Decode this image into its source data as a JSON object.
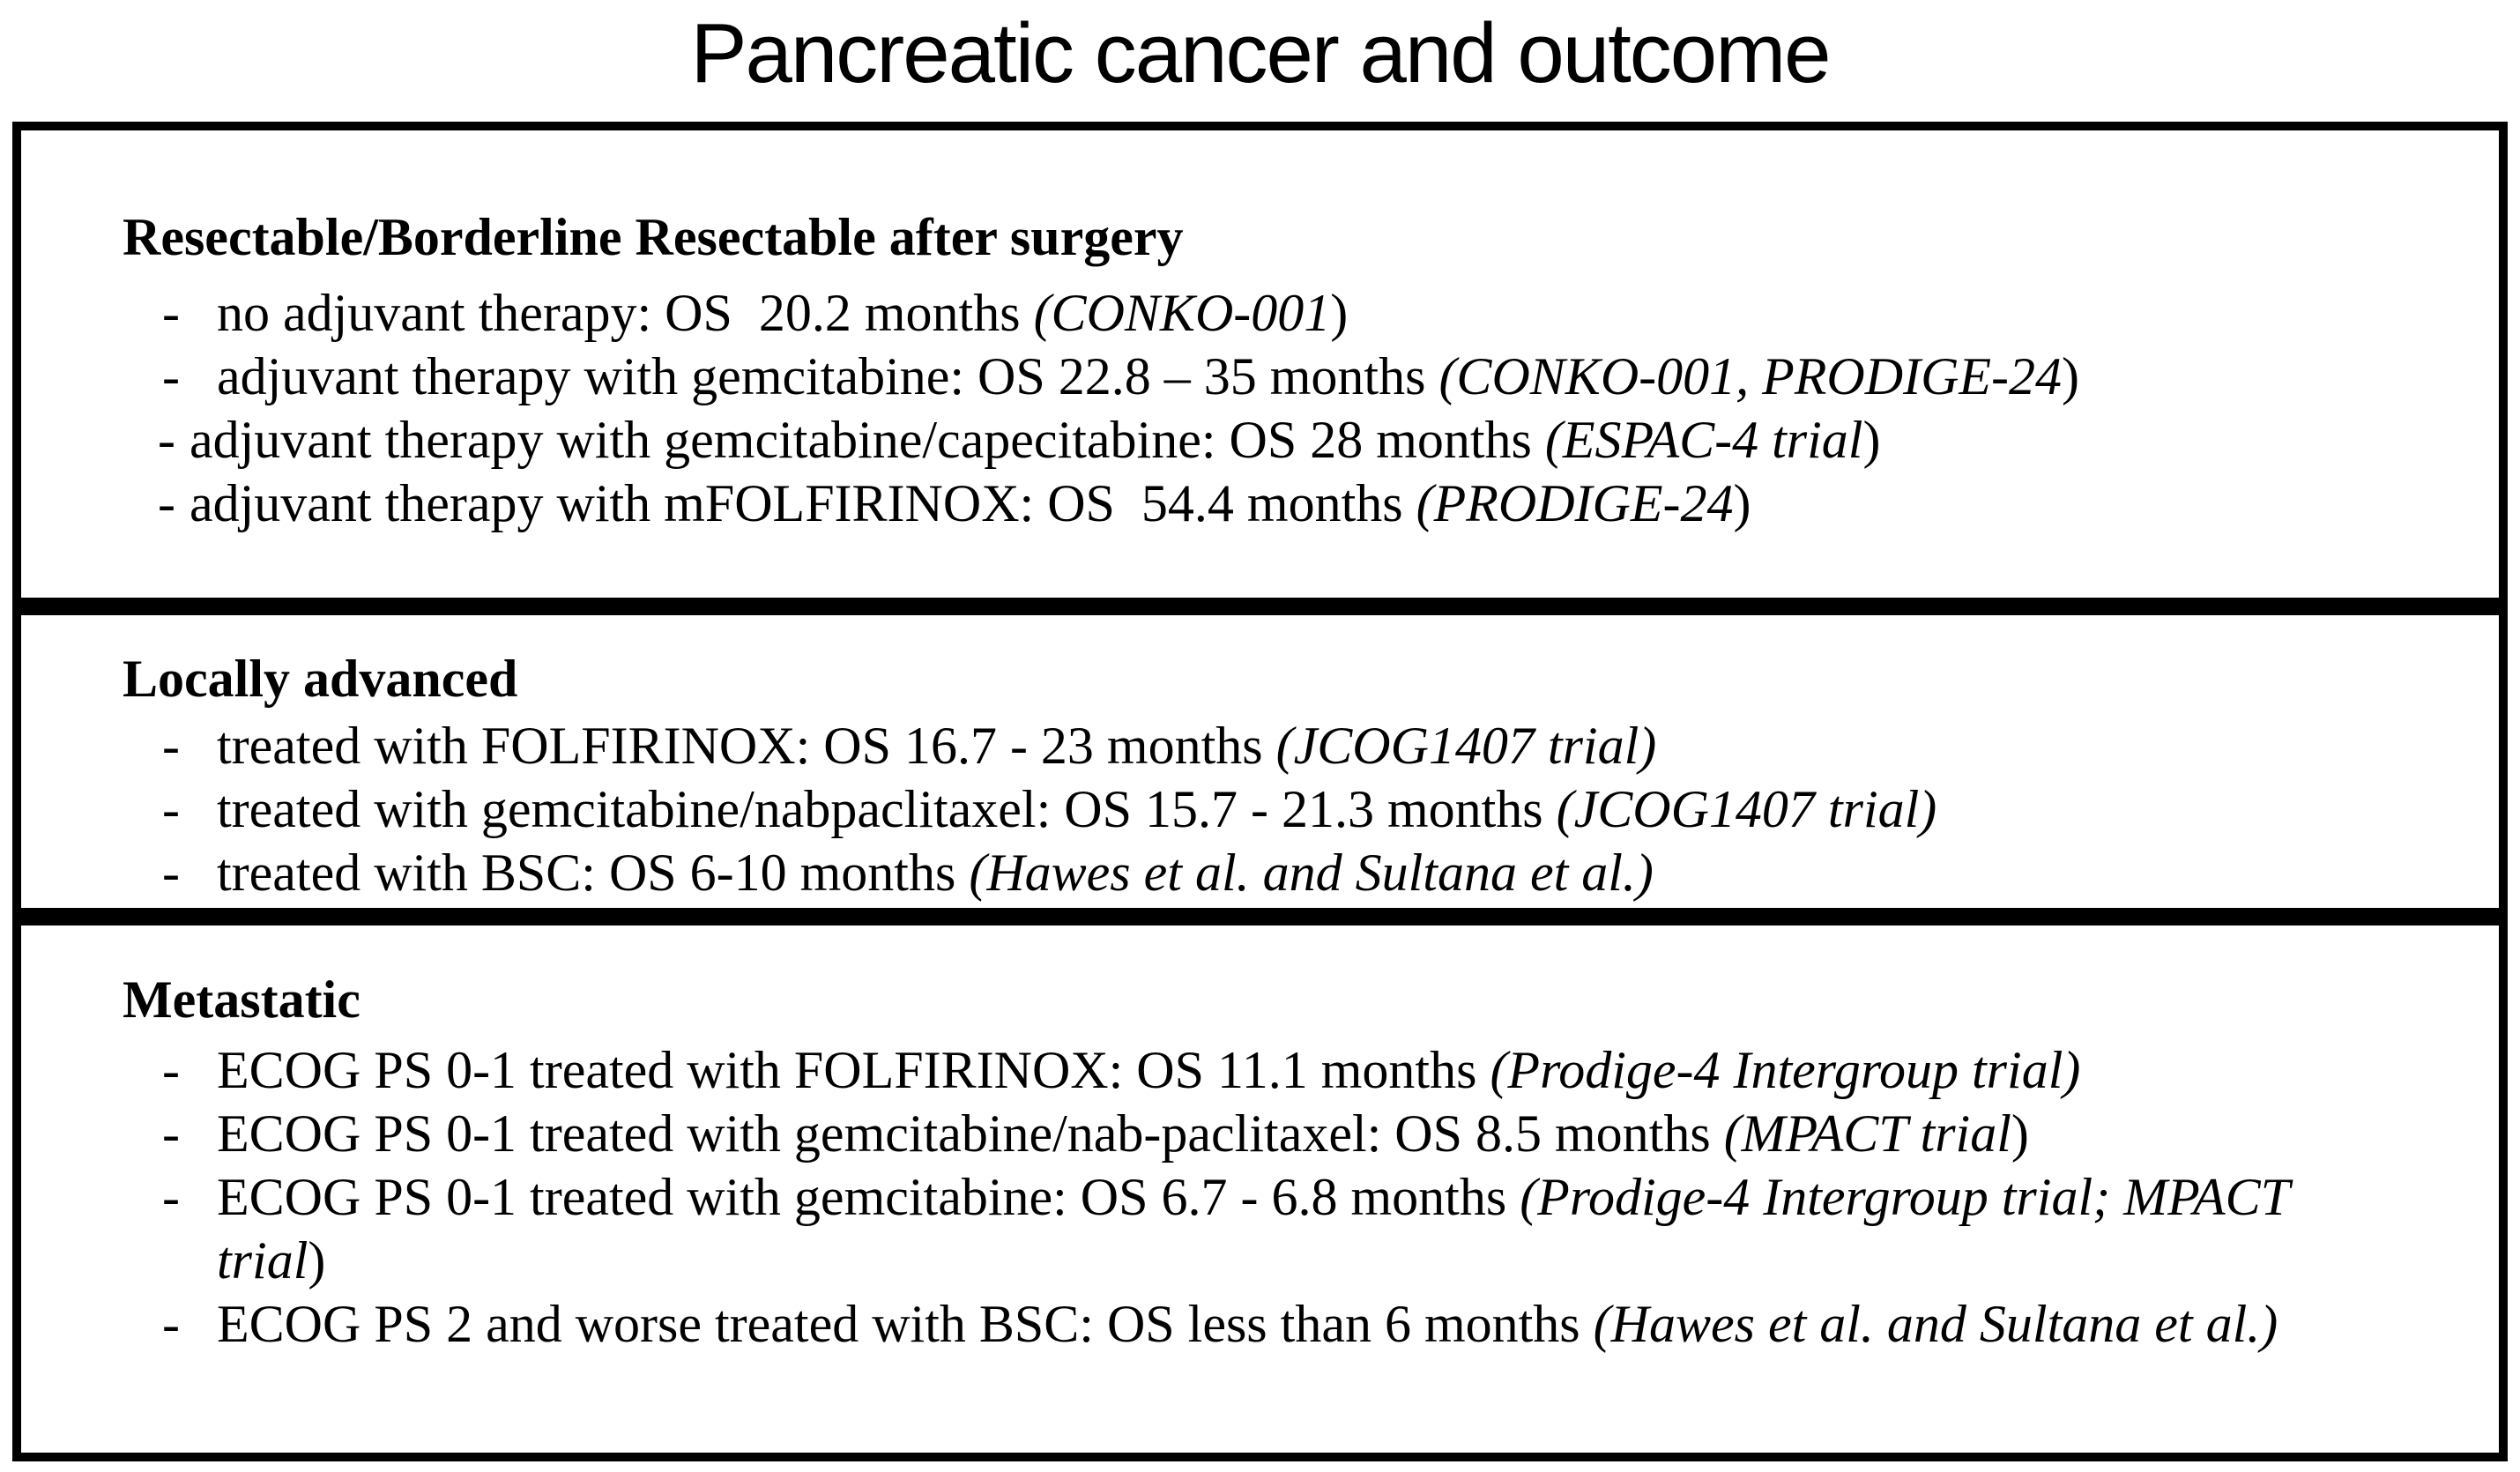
{
  "title": "Pancreatic cancer and outcome",
  "bullet": "-",
  "boxes": [
    {
      "heading": "Resectable/Borderline Resectable after surgery",
      "items": [
        {
          "style": "tab",
          "segments": [
            {
              "t": "no adjuvant therapy: OS  20.2 months "
            },
            {
              "t": "(CONKO-001",
              "i": true
            },
            {
              "t": ")"
            }
          ]
        },
        {
          "style": "tab",
          "segments": [
            {
              "t": "adjuvant therapy with gemcitabine: OS 22.8 – 35 months "
            },
            {
              "t": "(CONKO-001, PRODIGE-24",
              "i": true
            },
            {
              "t": ")"
            }
          ]
        },
        {
          "style": "inline",
          "segments": [
            {
              "t": "adjuvant therapy with gemcitabine/capecitabine: OS 28 months "
            },
            {
              "t": "(ESPAC-4 trial",
              "i": true
            },
            {
              "t": ")"
            }
          ]
        },
        {
          "style": "inline",
          "segments": [
            {
              "t": "adjuvant therapy with mFOLFIRINOX: OS  54.4 months "
            },
            {
              "t": "(PRODIGE-24",
              "i": true
            },
            {
              "t": ")"
            }
          ]
        }
      ]
    },
    {
      "heading": "Locally advanced",
      "items": [
        {
          "style": "tab",
          "segments": [
            {
              "t": "treated with FOLFIRINOX: OS 16.7 - 23 months "
            },
            {
              "t": "(JCOG1407 trial)",
              "i": true
            }
          ]
        },
        {
          "style": "tab",
          "segments": [
            {
              "t": "treated with gemcitabine/nabpaclitaxel: OS 15.7 - 21.3 months "
            },
            {
              "t": "(JCOG1407 trial)",
              "i": true
            }
          ]
        },
        {
          "style": "tab",
          "segments": [
            {
              "t": "treated with BSC: OS 6-10 months "
            },
            {
              "t": "(Hawes et al. and Sultana et al.)",
              "i": true
            }
          ]
        }
      ]
    },
    {
      "heading": "Metastatic",
      "items": [
        {
          "style": "tab",
          "segments": [
            {
              "t": "ECOG PS 0-1 treated with FOLFIRINOX: OS 11.1 months "
            },
            {
              "t": "(Prodige-4 Intergroup trial)",
              "i": true
            }
          ]
        },
        {
          "style": "tab",
          "segments": [
            {
              "t": "ECOG PS 0-1 treated with gemcitabine/nab-paclitaxel: OS 8.5 months "
            },
            {
              "t": "(MPACT trial",
              "i": true
            },
            {
              "t": ")"
            }
          ]
        },
        {
          "style": "tab",
          "segments": [
            {
              "t": "ECOG PS 0-1 treated with gemcitabine: OS 6.7 - 6.8 months "
            },
            {
              "t": "(Prodige-4 Intergroup trial; MPACT",
              "i": true
            },
            {
              "br": true
            },
            {
              "t": "trial",
              "i": true
            },
            {
              "t": ")"
            }
          ]
        },
        {
          "style": "tab",
          "segments": [
            {
              "t": "ECOG PS 2 and worse treated with BSC: OS less than 6 months "
            },
            {
              "t": "(Hawes et al. and Sultana et al.)",
              "i": true
            }
          ]
        }
      ]
    }
  ]
}
